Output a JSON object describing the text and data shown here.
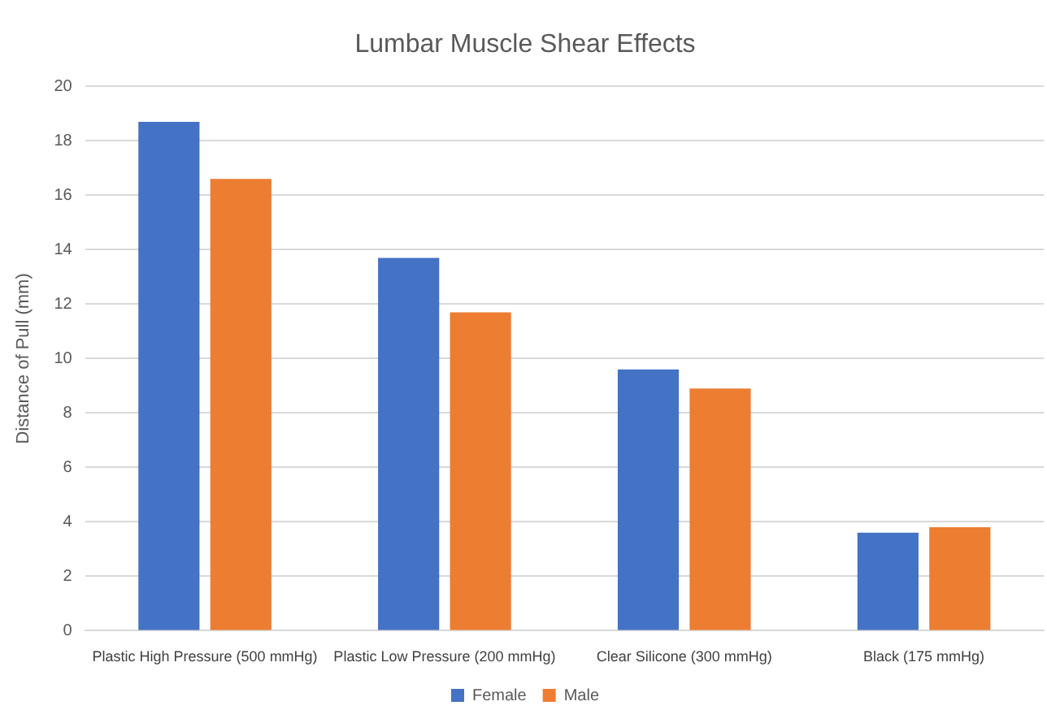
{
  "chart_data": {
    "type": "bar",
    "title": "Lumbar Muscle Shear Effects",
    "ylabel": "Distance of Pull (mm)",
    "categories": [
      "Plastic High Pressure (500 mmHg)",
      "Plastic Low Pressure (200 mmHg)",
      "Clear Silicone (300 mmHg)",
      "Black (175 mmHg)"
    ],
    "series": [
      {
        "name": "Female",
        "color": "#4472c4",
        "values": [
          18.7,
          13.7,
          9.6,
          3.6
        ]
      },
      {
        "name": "Male",
        "color": "#ed7d31",
        "values": [
          16.6,
          11.7,
          8.9,
          3.8
        ]
      }
    ],
    "ylim": [
      0,
      20
    ],
    "yticks": [
      0,
      2,
      4,
      6,
      8,
      10,
      12,
      14,
      16,
      18,
      20
    ],
    "grid": "y",
    "legend": "bottom"
  }
}
